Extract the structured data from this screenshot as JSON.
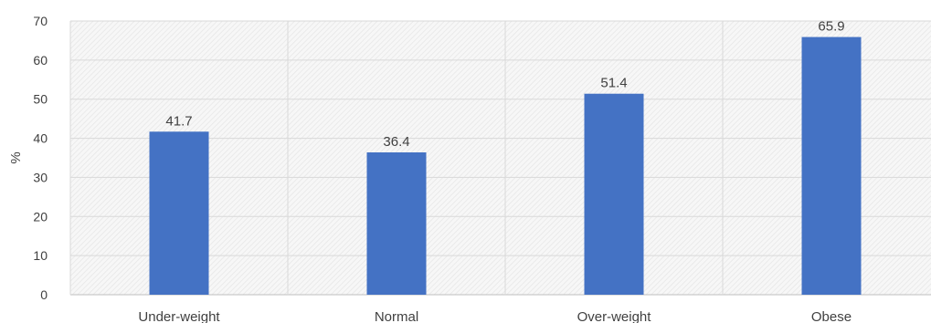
{
  "chart_data": {
    "type": "bar",
    "categories": [
      "Under-weight",
      "Normal",
      "Over-weight",
      "Obese"
    ],
    "values": [
      41.7,
      36.4,
      51.4,
      65.9
    ],
    "value_labels": [
      "41.7",
      "36.4",
      "51.4",
      "65.9"
    ],
    "ylabel": "%",
    "ylim": [
      0,
      70
    ],
    "yticks": [
      "0",
      "10",
      "20",
      "30",
      "40",
      "50",
      "60",
      "70"
    ],
    "grid": true,
    "bar_color": "#4472C4",
    "gridline_color": "#d9d9d9",
    "plot_background": "#f2f2f2"
  }
}
